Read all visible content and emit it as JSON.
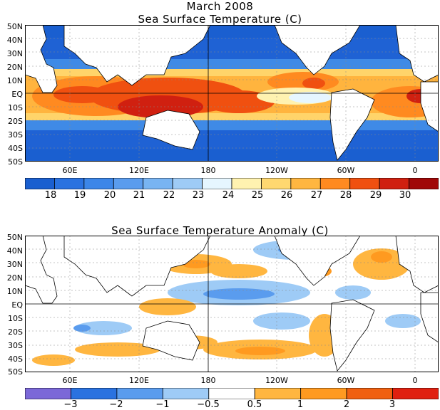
{
  "title": "March 2008",
  "panels": [
    {
      "id": "sst",
      "title": "Sea Surface Temperature (C)",
      "lat_labels": [
        "50N",
        "40N",
        "30N",
        "20N",
        "10N",
        "EQ",
        "10S",
        "20S",
        "30S",
        "40S",
        "50S"
      ],
      "lon_labels": [
        "60E",
        "120E",
        "180",
        "120W",
        "60W",
        "0"
      ],
      "colorbar": {
        "colors": [
          "#1a5fd0",
          "#2a72e0",
          "#3c86e8",
          "#5a9cee",
          "#78b4f2",
          "#9ecbf6",
          "#e6f6ff",
          "#fff2b0",
          "#ffd870",
          "#ffb640",
          "#ff8a20",
          "#f05010",
          "#d02010",
          "#a00808"
        ],
        "labels": [
          "18",
          "19",
          "20",
          "21",
          "22",
          "23",
          "24",
          "25",
          "26",
          "27",
          "28",
          "29",
          "30"
        ]
      }
    },
    {
      "id": "anom",
      "title": "Sea Surface Temperature Anomaly (C)",
      "lat_labels": [
        "50N",
        "40N",
        "30N",
        "20N",
        "10N",
        "EQ",
        "10S",
        "20S",
        "30S",
        "40S",
        "50S"
      ],
      "lon_labels": [
        "60E",
        "120E",
        "180",
        "120W",
        "60W",
        "0"
      ],
      "colorbar": {
        "colors": [
          "#7b68d8",
          "#2a72e0",
          "#5a9cee",
          "#9ecbf6",
          "#ffffff",
          "#ffb640",
          "#ff9a20",
          "#f06010",
          "#e02010"
        ],
        "labels": [
          "−3",
          "−2",
          "−1",
          "−0.5",
          "0.5",
          "1",
          "2",
          "3"
        ]
      }
    }
  ]
}
